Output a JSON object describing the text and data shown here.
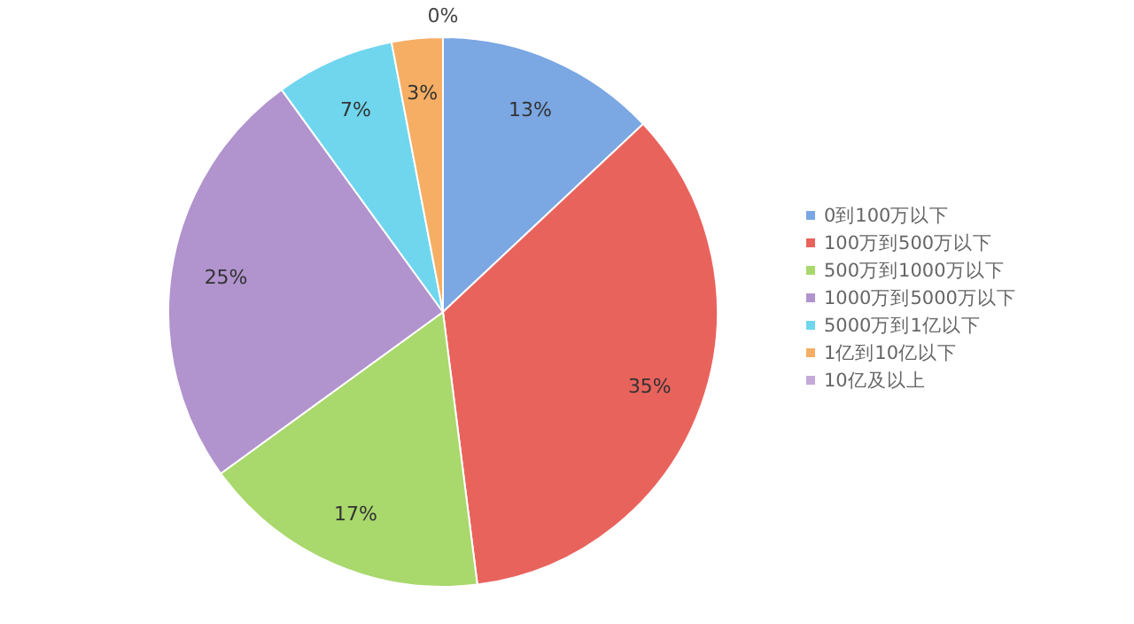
{
  "chart_data": {
    "type": "pie",
    "categories": [
      "0到100万以下",
      "100万到500万以下",
      "500万到1000万以下",
      "1000万到5000万以下",
      "5000万到1亿以下",
      "1亿到10亿以下",
      "10亿及以上"
    ],
    "values": [
      13,
      35,
      17,
      25,
      7,
      3,
      0
    ],
    "value_labels": [
      "13%",
      "35%",
      "17%",
      "25%",
      "7%",
      "3%",
      "0%"
    ],
    "colors": [
      "#7ba7e3",
      "#e9635d",
      "#a9d86c",
      "#b193cd",
      "#6fd6ee",
      "#f5ae63",
      "#c3aad9"
    ],
    "legend": "right"
  }
}
